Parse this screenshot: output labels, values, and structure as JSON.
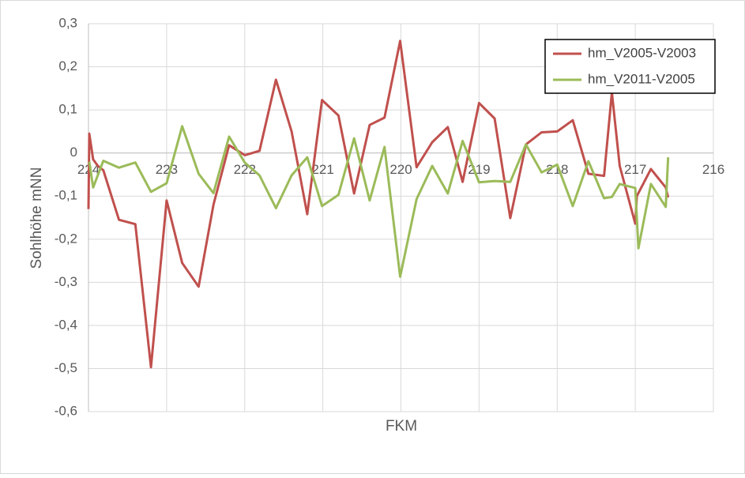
{
  "chart_data": {
    "type": "line",
    "x_label": "FKM",
    "y_label": "Sohlhöhe mNN",
    "xlim": [
      224,
      216
    ],
    "xticks": [
      224,
      223,
      222,
      221,
      220,
      219,
      218,
      217,
      216
    ],
    "ylim": [
      -0.6,
      0.3
    ],
    "yticks": [
      {
        "value": 0.3,
        "label": "0,3"
      },
      {
        "value": 0.2,
        "label": "0,2"
      },
      {
        "value": 0.1,
        "label": "0,1"
      },
      0,
      {
        "value": -0.1,
        "label": "-0,1"
      },
      {
        "value": -0.2,
        "label": "-0,2"
      },
      {
        "value": -0.3,
        "label": "-0,3"
      },
      {
        "value": -0.4,
        "label": "-0,4"
      },
      {
        "value": -0.5,
        "label": "-0,5"
      },
      {
        "value": -0.6,
        "label": "-0,6"
      }
    ],
    "grid": true,
    "legend": "upper right",
    "series": [
      {
        "name": "hm_V2005-V2003",
        "color": "#c0504d",
        "x": [
          224.0,
          223.99,
          223.94,
          223.88,
          223.81,
          223.61,
          223.4,
          223.2,
          223.0,
          222.8,
          222.59,
          222.4,
          222.2,
          222.0,
          221.81,
          221.6,
          221.4,
          221.2,
          221.01,
          220.8,
          220.6,
          220.4,
          220.21,
          220.01,
          219.8,
          219.6,
          219.4,
          219.21,
          219.0,
          218.8,
          218.6,
          218.4,
          218.2,
          218.0,
          217.8,
          217.6,
          217.4,
          217.3,
          217.2,
          217.0,
          216.98,
          216.8,
          216.61,
          216.58
        ],
        "values": [
          -0.13,
          0.045,
          -0.015,
          -0.03,
          -0.04,
          -0.155,
          -0.165,
          -0.497,
          -0.11,
          -0.255,
          -0.31,
          -0.12,
          0.018,
          -0.005,
          0.005,
          0.17,
          0.05,
          -0.142,
          0.123,
          0.087,
          -0.094,
          0.065,
          0.082,
          0.26,
          -0.033,
          0.025,
          0.06,
          -0.067,
          0.116,
          0.08,
          -0.151,
          0.02,
          0.048,
          0.05,
          0.076,
          -0.048,
          -0.053,
          0.14,
          -0.03,
          -0.164,
          -0.1,
          -0.037,
          -0.08,
          -0.103
        ]
      },
      {
        "name": "hm_V2011-V2005",
        "color": "#9bbb59",
        "x": [
          223.99,
          223.94,
          223.81,
          223.61,
          223.4,
          223.2,
          223.0,
          222.8,
          222.59,
          222.4,
          222.2,
          222.0,
          221.81,
          221.6,
          221.4,
          221.2,
          221.01,
          220.8,
          220.6,
          220.4,
          220.21,
          220.01,
          219.8,
          219.6,
          219.4,
          219.21,
          219.0,
          218.8,
          218.6,
          218.4,
          218.2,
          218.0,
          217.8,
          217.6,
          217.4,
          217.3,
          217.2,
          217.0,
          216.96,
          216.8,
          216.61,
          216.58
        ],
        "values": [
          -0.02,
          -0.08,
          -0.018,
          -0.034,
          -0.022,
          -0.09,
          -0.07,
          0.062,
          -0.048,
          -0.093,
          0.038,
          -0.022,
          -0.052,
          -0.128,
          -0.052,
          -0.01,
          -0.123,
          -0.097,
          0.034,
          -0.11,
          0.014,
          -0.287,
          -0.107,
          -0.03,
          -0.094,
          0.028,
          -0.068,
          -0.065,
          -0.067,
          0.02,
          -0.045,
          -0.027,
          -0.123,
          -0.019,
          -0.105,
          -0.102,
          -0.072,
          -0.081,
          -0.221,
          -0.072,
          -0.125,
          -0.01
        ]
      }
    ]
  }
}
